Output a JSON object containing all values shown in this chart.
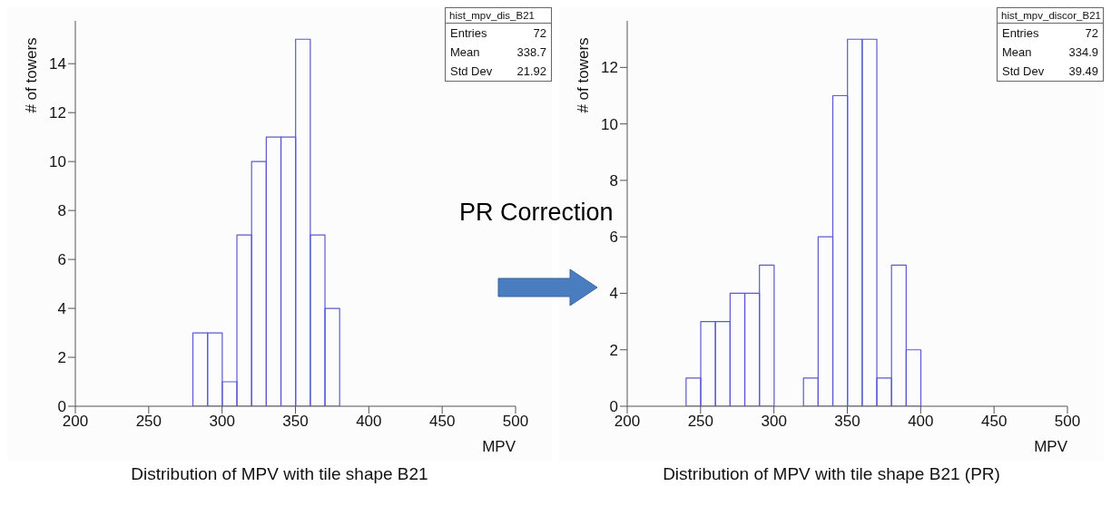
{
  "chart_data": [
    {
      "type": "histogram",
      "title": "Distribution of MPV with tile shape B21",
      "xlabel": "MPV",
      "ylabel": "# of towers",
      "color": "#5a5ad2",
      "bins": [
        280,
        290,
        300,
        310,
        320,
        330,
        340,
        350,
        360,
        370,
        380
      ],
      "values": [
        3,
        3,
        1,
        7,
        10,
        11,
        11,
        15,
        7,
        4
      ],
      "xlim": [
        200,
        500
      ],
      "xticks": [
        200,
        250,
        300,
        350,
        400,
        450,
        500
      ],
      "ylim": [
        0,
        15.75
      ],
      "yticks": [
        0,
        2,
        4,
        6,
        8,
        10,
        12,
        14
      ],
      "annotations": [
        "hist_mpv_dis_B21",
        "Entries",
        "72",
        "Mean",
        "338.7",
        "Std Dev",
        "21.92",
        "PR Correction"
      ]
    },
    {
      "type": "histogram",
      "title": "Distribution of MPV with tile shape B21 (PR)",
      "xlabel": "MPV",
      "ylabel": "# of towers",
      "color": "#5a5ad2",
      "bins": [
        240,
        250,
        260,
        270,
        280,
        290,
        300,
        310,
        320,
        330,
        340,
        350,
        360,
        370,
        380,
        390,
        400
      ],
      "values": [
        1,
        3,
        3,
        4,
        4,
        5,
        0,
        0,
        1,
        6,
        11,
        13,
        13,
        1,
        5,
        2
      ],
      "xlim": [
        200,
        500
      ],
      "xticks": [
        200,
        250,
        300,
        350,
        400,
        450,
        500
      ],
      "ylim": [
        0,
        13.65
      ],
      "yticks": [
        0,
        2,
        4,
        6,
        8,
        10,
        12
      ],
      "annotations": [
        "hist_mpv_discor_B21",
        "Entries",
        "72",
        "Mean",
        "334.9",
        "Std Dev",
        "39.49"
      ]
    }
  ]
}
